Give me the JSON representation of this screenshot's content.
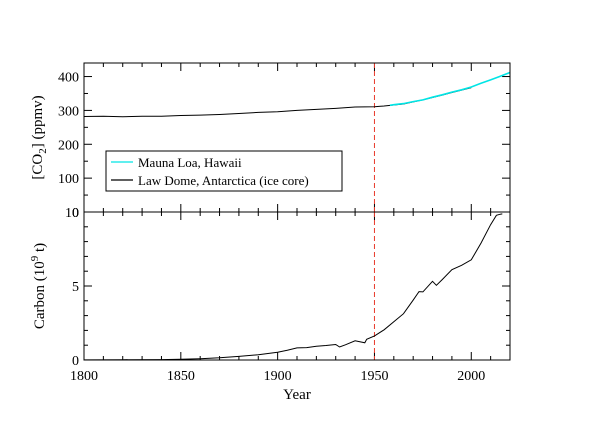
{
  "chart_data": [
    {
      "type": "line",
      "panel": "top",
      "xlabel": "",
      "ylabel": {
        "pre": "[CO",
        "sub": "2",
        "post": "] (ppmv)"
      },
      "xlim": [
        1800,
        2020
      ],
      "ylim": [
        0,
        440
      ],
      "yticks": [
        0,
        100,
        200,
        300,
        400
      ],
      "yminor_step": 50,
      "xminor_step": 10,
      "grid": false,
      "legend": "lower-left",
      "series": [
        {
          "name": "Mauna Loa, Hawaii",
          "color": "#00e5e5",
          "x": [
            1958,
            1960,
            1965,
            1970,
            1975,
            1980,
            1985,
            1990,
            1995,
            2000,
            2005,
            2010,
            2015,
            2020
          ],
          "y": [
            315,
            317,
            320,
            326,
            331,
            339,
            346,
            354,
            361,
            369,
            380,
            390,
            401,
            412
          ]
        },
        {
          "name": "Law Dome, Antarctica (ice core)",
          "color": "#000000",
          "x": [
            1800,
            1810,
            1820,
            1830,
            1840,
            1850,
            1860,
            1870,
            1880,
            1890,
            1900,
            1910,
            1920,
            1930,
            1940,
            1950,
            1955,
            1960,
            1965,
            1970,
            1975,
            1980,
            1985,
            1990,
            1995,
            2000
          ],
          "y": [
            282,
            283,
            281,
            283,
            283,
            285,
            286,
            288,
            291,
            294,
            296,
            300,
            303,
            306,
            310,
            311,
            313,
            316,
            319,
            325,
            331,
            338,
            345,
            353,
            360,
            367
          ]
        }
      ],
      "vline": {
        "x": 1950,
        "color": "#e8392a"
      }
    },
    {
      "type": "line",
      "panel": "bottom",
      "xlabel": "Year",
      "ylabel": {
        "pre": "Carbon (10",
        "sup": "9",
        "post": " t)"
      },
      "xlim": [
        1800,
        2020
      ],
      "ylim": [
        0,
        10
      ],
      "yticks": [
        0,
        5,
        10
      ],
      "yminor_step": 1,
      "xticks": [
        1800,
        1850,
        1900,
        1950,
        2000
      ],
      "xminor_step": 10,
      "grid": false,
      "series": [
        {
          "color": "#000000",
          "x": [
            1800,
            1820,
            1840,
            1850,
            1860,
            1870,
            1880,
            1890,
            1900,
            1905,
            1910,
            1915,
            1920,
            1925,
            1930,
            1932,
            1935,
            1940,
            1945,
            1946,
            1950,
            1955,
            1960,
            1965,
            1970,
            1973,
            1975,
            1980,
            1982,
            1985,
            1990,
            1995,
            2000,
            2005,
            2010,
            2013,
            2015,
            2016
          ],
          "y": [
            0.01,
            0.02,
            0.03,
            0.05,
            0.09,
            0.15,
            0.24,
            0.36,
            0.53,
            0.66,
            0.82,
            0.84,
            0.93,
            0.98,
            1.05,
            0.88,
            1.03,
            1.3,
            1.16,
            1.4,
            1.63,
            2.04,
            2.58,
            3.13,
            4.05,
            4.62,
            4.6,
            5.32,
            5.05,
            5.43,
            6.1,
            6.4,
            6.77,
            7.9,
            9.14,
            9.78,
            9.85,
            9.87
          ]
        }
      ],
      "vline": {
        "x": 1950,
        "color": "#e8392a"
      }
    }
  ]
}
